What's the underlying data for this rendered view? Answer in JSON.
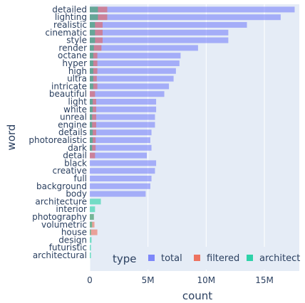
{
  "chart_data": {
    "type": "bar",
    "orientation": "horizontal",
    "barmode": "overlay",
    "xlabel": "count",
    "ylabel": "word",
    "xlim": [
      0,
      18000000
    ],
    "xticks": [
      0,
      5000000,
      10000000,
      15000000
    ],
    "xtick_labels": [
      "0",
      "5M",
      "10M",
      "15M"
    ],
    "grid": true,
    "legend_title": "type",
    "legend_position": "bottom-right",
    "categories": [
      "detailed",
      "lighting",
      "realistic",
      "cinematic",
      "style",
      "render",
      "octane",
      "hyper",
      "high",
      "ultra",
      "intricate",
      "beautiful",
      "light",
      "white",
      "unreal",
      "engine",
      "details",
      "photorealistic",
      "dark",
      "detail",
      "black",
      "creative",
      "full",
      "background",
      "body",
      "architecture",
      "interior",
      "photography",
      "volumetric",
      "house",
      "design",
      "futuristic",
      "architectural"
    ],
    "series": [
      {
        "name": "total",
        "color": "#636efa",
        "values": [
          17600000,
          16400000,
          13500000,
          11900000,
          11900000,
          9300000,
          7800000,
          7700000,
          7400000,
          7200000,
          6800000,
          6400000,
          5700000,
          5700000,
          5600000,
          5600000,
          5300000,
          5200000,
          5300000,
          4900000,
          5700000,
          5600000,
          5300000,
          5200000,
          4800000,
          0,
          0,
          0,
          0,
          0,
          0,
          0,
          0
        ]
      },
      {
        "name": "filtered",
        "color": "#ef553b",
        "values": [
          1500000,
          1500000,
          1100000,
          1100000,
          1100000,
          1000000,
          650000,
          650000,
          650000,
          600000,
          650000,
          450000,
          550000,
          550000,
          550000,
          550000,
          550000,
          500000,
          500000,
          450000,
          0,
          0,
          0,
          0,
          0,
          0,
          0,
          350000,
          400000,
          650000,
          0,
          0,
          0
        ]
      },
      {
        "name": "architect",
        "color": "#00cc96",
        "values": [
          700000,
          700000,
          450000,
          450000,
          450000,
          350000,
          300000,
          300000,
          300000,
          300000,
          300000,
          0,
          250000,
          250000,
          200000,
          200000,
          250000,
          250000,
          200000,
          0,
          0,
          0,
          0,
          0,
          0,
          950000,
          450000,
          350000,
          200000,
          100000,
          150000,
          100000,
          100000
        ]
      }
    ]
  }
}
